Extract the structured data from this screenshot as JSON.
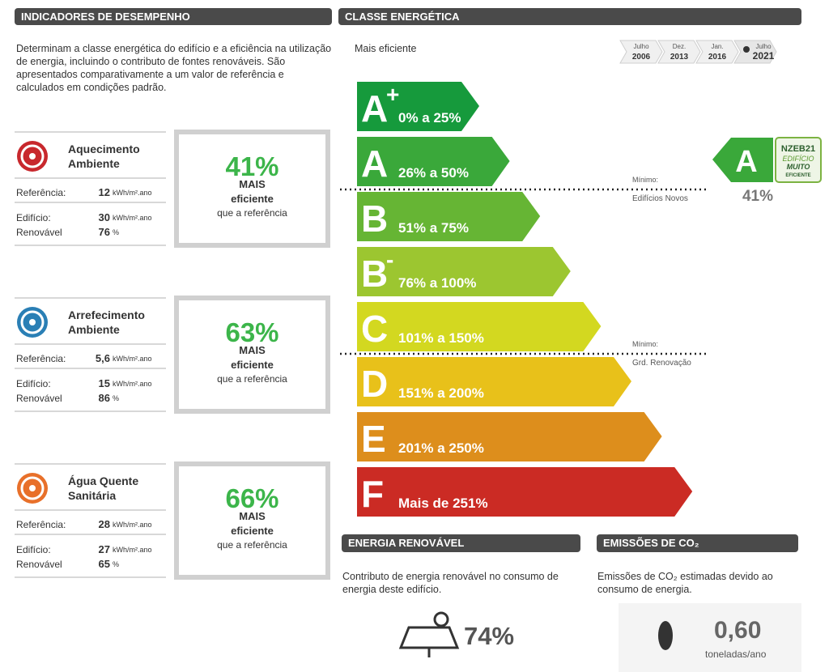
{
  "left": {
    "header": "INDICADORES DE DESEMPENHO",
    "intro": "Determinam a classe energética do edifício e a eficiência na utilização de energia, incluindo o contributo de fontes renováveis. São apresentados comparativamente a um valor de referência e calculados em condições padrão.",
    "indicators": [
      {
        "title": "Aquecimento Ambiente",
        "rows": [
          {
            "label": "Referência:",
            "value": "12",
            "unit": "kWh/m².ano"
          },
          {
            "label": "Edifício:",
            "value": "30",
            "unit": "kWh/m².ano"
          },
          {
            "label": "Renovável",
            "value": "76",
            "unit": "%"
          }
        ],
        "percent": "41%",
        "line1": "MAIS",
        "line2": "eficiente",
        "line3": "que a referência"
      },
      {
        "title": "Arrefecimento Ambiente",
        "rows": [
          {
            "label": "Referência:",
            "value": "5,6",
            "unit": "kWh/m².ano"
          },
          {
            "label": "Edifício:",
            "value": "15",
            "unit": "kWh/m².ano"
          },
          {
            "label": "Renovável",
            "value": "86",
            "unit": "%"
          }
        ],
        "percent": "63%",
        "line1": "MAIS",
        "line2": "eficiente",
        "line3": "que a referência"
      },
      {
        "title": "Água Quente Sanitária",
        "rows": [
          {
            "label": "Referência:",
            "value": "28",
            "unit": "kWh/m².ano"
          },
          {
            "label": "Edifício:",
            "value": "27",
            "unit": "kWh/m².ano"
          },
          {
            "label": "Renovável",
            "value": "65",
            "unit": "%"
          }
        ],
        "percent": "66%",
        "line1": "MAIS",
        "line2": "eficiente",
        "line3": "que a referência"
      }
    ]
  },
  "energy_class": {
    "header": "CLASSE ENERGÉTICA",
    "more_efficient": "Mais eficiente",
    "timeline": [
      {
        "month": "Julho",
        "year": "2006"
      },
      {
        "month": "Dez.",
        "year": "2013"
      },
      {
        "month": "Jan.",
        "year": "2016"
      },
      {
        "month": "Julho",
        "year": "2021"
      }
    ],
    "classes": [
      {
        "letter": "A",
        "sup": "+",
        "range": "0% a 25%"
      },
      {
        "letter": "A",
        "range": "26% a 50%"
      },
      {
        "letter": "B",
        "range": "51% a 75%"
      },
      {
        "letter": "B",
        "sup": "-",
        "range": "76% a 100%"
      },
      {
        "letter": "C",
        "range": "101% a 150%"
      },
      {
        "letter": "D",
        "range": "151% a 200%"
      },
      {
        "letter": "E",
        "range": "201% a 250%"
      },
      {
        "letter": "F",
        "range": "Mais de 251%"
      }
    ],
    "min_new": {
      "label": "Mínimo:",
      "text": "Edifícios Novos"
    },
    "min_reno": {
      "label": "Mínimo:",
      "text": "Grd. Renovação"
    },
    "result": {
      "letter": "A",
      "percent": "41%"
    },
    "nzeb": {
      "line1": "NZEB21",
      "line2": "EDIFÍCIO",
      "line3": "MUITO",
      "line4": "EFICIENTE"
    }
  },
  "renewable": {
    "header": "ENERGIA RENOVÁVEL",
    "text": "Contributo de energia renovável no consumo de energia deste edifício.",
    "value": "74%"
  },
  "emissions": {
    "header": "EMISSÕES DE CO₂",
    "text": "Emissões de CO₂ estimadas devido ao consumo de energia.",
    "value": "0,60",
    "unit": "toneladas/ano"
  }
}
